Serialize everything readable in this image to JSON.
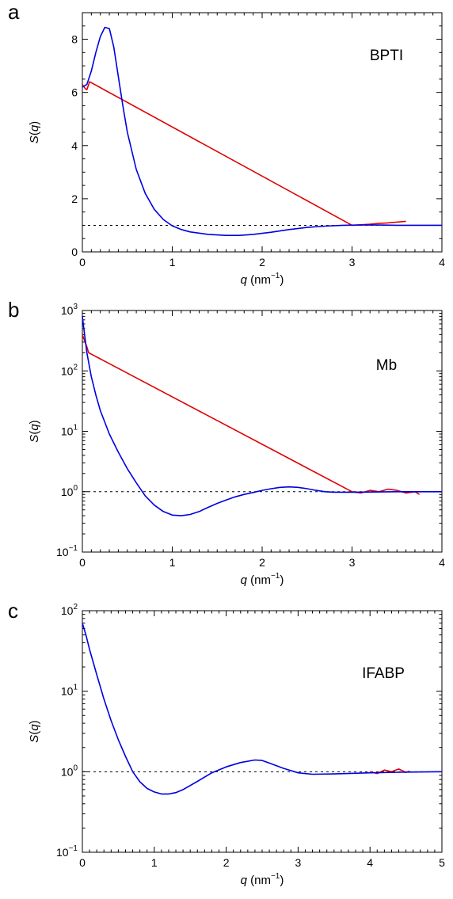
{
  "chart_data": [
    {
      "panel": "a",
      "type": "line",
      "annotation": "BPTI",
      "xlabel": "q (nm−1)",
      "ylabel": "S(q)",
      "xlim": [
        0,
        4
      ],
      "ylim": [
        0,
        9
      ],
      "yscale": "linear",
      "xticks": [
        "0",
        "1",
        "2",
        "3",
        "4"
      ],
      "yticks": [
        "0",
        "2",
        "4",
        "6",
        "8"
      ],
      "reference_line": 1,
      "series": [
        {
          "color": "#e00000",
          "x": [
            0.0,
            0.03,
            0.05,
            0.08,
            3.0,
            3.1,
            3.2,
            3.3,
            3.4,
            3.5,
            3.6
          ],
          "y": [
            6.3,
            6.15,
            6.1,
            6.4,
            1.0,
            1.02,
            1.04,
            1.07,
            1.09,
            1.12,
            1.15
          ]
        },
        {
          "color": "#0000e0",
          "x": [
            0.0,
            0.05,
            0.1,
            0.15,
            0.2,
            0.25,
            0.3,
            0.35,
            0.4,
            0.45,
            0.5,
            0.6,
            0.7,
            0.8,
            0.9,
            1.0,
            1.1,
            1.2,
            1.4,
            1.6,
            1.75,
            1.9,
            2.1,
            2.3,
            2.5,
            2.7,
            2.9,
            3.1,
            3.3,
            3.5,
            3.7,
            4.0
          ],
          "y": [
            6.2,
            6.3,
            6.8,
            7.5,
            8.1,
            8.45,
            8.4,
            7.7,
            6.6,
            5.5,
            4.5,
            3.1,
            2.2,
            1.6,
            1.22,
            0.98,
            0.84,
            0.75,
            0.66,
            0.62,
            0.62,
            0.66,
            0.74,
            0.84,
            0.92,
            0.97,
            1.0,
            1.01,
            1.01,
            1.0,
            1.0,
            1.0
          ]
        }
      ]
    },
    {
      "panel": "b",
      "type": "line",
      "annotation": "Mb",
      "xlabel": "q (nm−1)",
      "ylabel": "S(q)",
      "xlim": [
        0,
        4
      ],
      "ylim": [
        0.1,
        1000
      ],
      "yscale": "log",
      "xticks": [
        "0",
        "1",
        "2",
        "3",
        "4"
      ],
      "yticks": [
        "10−1",
        "100",
        "101",
        "102",
        "103"
      ],
      "reference_line": 1,
      "series": [
        {
          "color": "#e00000",
          "x": [
            0.0,
            0.03,
            0.05,
            0.07,
            3.0,
            3.1,
            3.2,
            3.3,
            3.4,
            3.5,
            3.6,
            3.7,
            3.75
          ],
          "y": [
            400,
            300,
            250,
            200,
            1.0,
            0.95,
            1.05,
            1.0,
            1.1,
            1.05,
            0.95,
            1.0,
            0.9
          ]
        },
        {
          "color": "#0000e0",
          "x": [
            0.0,
            0.02,
            0.05,
            0.1,
            0.15,
            0.2,
            0.3,
            0.4,
            0.5,
            0.6,
            0.7,
            0.8,
            0.9,
            1.0,
            1.1,
            1.2,
            1.3,
            1.4,
            1.5,
            1.6,
            1.7,
            1.8,
            1.9,
            2.0,
            2.1,
            2.2,
            2.3,
            2.4,
            2.5,
            2.6,
            2.7,
            2.8,
            2.9,
            3.0,
            3.5,
            4.0
          ],
          "y": [
            800,
            450,
            200,
            80,
            40,
            22,
            9,
            4.5,
            2.4,
            1.4,
            0.85,
            0.6,
            0.47,
            0.41,
            0.4,
            0.42,
            0.47,
            0.55,
            0.64,
            0.73,
            0.82,
            0.9,
            0.97,
            1.05,
            1.12,
            1.18,
            1.2,
            1.18,
            1.12,
            1.05,
            1.0,
            0.98,
            0.98,
            0.98,
            1.0,
            1.0
          ]
        }
      ]
    },
    {
      "panel": "c",
      "type": "line",
      "annotation": "IFABP",
      "xlabel": "q (nm−1)",
      "ylabel": "S(q)",
      "xlim": [
        0,
        5
      ],
      "ylim": [
        0.1,
        100
      ],
      "yscale": "log",
      "xticks": [
        "0",
        "1",
        "2",
        "3",
        "4",
        "5"
      ],
      "yticks": [
        "10−1",
        "100",
        "101",
        "102"
      ],
      "reference_line": 1,
      "series": [
        {
          "color": "#e00000",
          "x": [
            4.0,
            4.1,
            4.2,
            4.3,
            4.4,
            4.5,
            4.55
          ],
          "y": [
            1.0,
            0.95,
            1.05,
            1.0,
            1.08,
            0.98,
            1.02
          ]
        },
        {
          "color": "#0000e0",
          "x": [
            0.0,
            0.05,
            0.1,
            0.2,
            0.3,
            0.4,
            0.5,
            0.6,
            0.7,
            0.8,
            0.9,
            1.0,
            1.1,
            1.2,
            1.3,
            1.4,
            1.6,
            1.8,
            2.0,
            2.2,
            2.4,
            2.5,
            2.6,
            2.8,
            3.0,
            3.2,
            3.5,
            4.0,
            4.5,
            5.0
          ],
          "y": [
            70,
            50,
            33,
            16,
            8,
            4.3,
            2.5,
            1.55,
            1.0,
            0.75,
            0.62,
            0.56,
            0.53,
            0.53,
            0.55,
            0.6,
            0.76,
            0.97,
            1.15,
            1.3,
            1.4,
            1.38,
            1.28,
            1.1,
            0.97,
            0.93,
            0.94,
            0.97,
            0.99,
            1.0
          ]
        }
      ]
    }
  ]
}
